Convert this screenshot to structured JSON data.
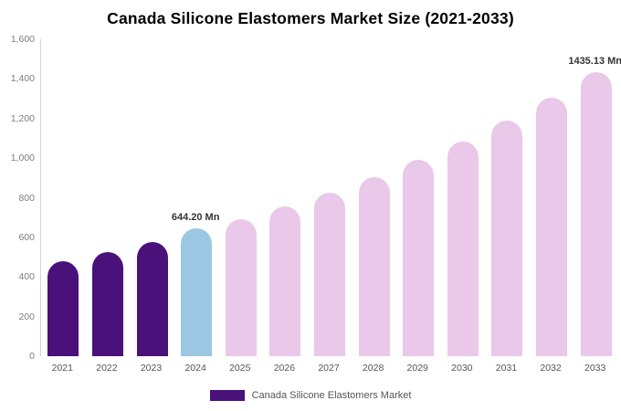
{
  "chart_data": {
    "type": "bar",
    "title": "Canada Silicone Elastomers Market Size (2021-2033)",
    "categories": [
      "2021",
      "2022",
      "2023",
      "2024",
      "2025",
      "2026",
      "2027",
      "2028",
      "2029",
      "2030",
      "2031",
      "2032",
      "2033"
    ],
    "values": [
      480,
      525,
      575,
      644.2,
      690,
      755,
      825,
      905,
      990,
      1085,
      1190,
      1305,
      1435.13
    ],
    "bar_colors": [
      "#4A117B",
      "#4A117B",
      "#4A117B",
      "#9CC7E2",
      "#EAC8EA",
      "#EAC8EA",
      "#EAC8EA",
      "#EAC8EA",
      "#EAC8EA",
      "#EAC8EA",
      "#EAC8EA",
      "#EAC8EA",
      "#EAC8EA"
    ],
    "annotations": [
      {
        "index": 3,
        "text": "644.20 Mn"
      },
      {
        "index": 12,
        "text": "1435.13 Mn"
      }
    ],
    "xlabel": "",
    "ylabel": "",
    "ylim": [
      0,
      1600
    ],
    "y_ticks": [
      0,
      200,
      400,
      600,
      800,
      1000,
      1200,
      1400,
      1600
    ],
    "grid": false,
    "legend_position": "bottom",
    "legend": [
      "Canada Silicone Elastomers Market"
    ],
    "colors": {
      "historical": "#4A117B",
      "highlight": "#9CC7E2",
      "forecast": "#EAC8EA",
      "legend_swatch": "#4A117B"
    }
  }
}
